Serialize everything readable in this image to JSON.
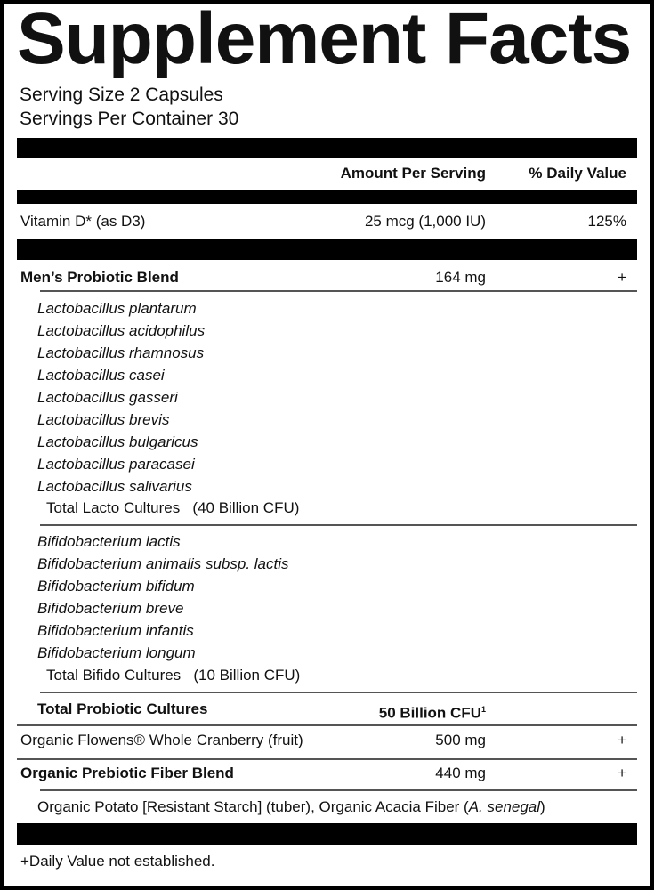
{
  "title": "Supplement Facts",
  "serving_size": "Serving Size 2 Capsules",
  "servings_per_container": "Servings Per Container 30",
  "header": {
    "amount": "Amount Per Serving",
    "daily_value": "% Daily Value"
  },
  "vitamin_d": {
    "name": "Vitamin D* (as D3)",
    "amount": "25 mcg (1,000 IU)",
    "dv": "125%"
  },
  "blend": {
    "name": "Men’s Probiotic Blend",
    "amount": "164 mg",
    "dv": "+"
  },
  "lacto": [
    "Lactobacillus plantarum",
    "Lactobacillus acidophilus",
    "Lactobacillus rhamnosus",
    "Lactobacillus casei",
    "Lactobacillus gasseri",
    "Lactobacillus brevis",
    "Lactobacillus bulgaricus",
    "Lactobacillus paracasei",
    "Lactobacillus salivarius"
  ],
  "lacto_total": "Total Lacto Cultures   (40 Billion CFU)",
  "bifido": [
    "Bifidobacterium lactis",
    "Bifidobacterium animalis subsp. lactis",
    "Bifidobacterium bifidum",
    "Bifidobacterium breve",
    "Bifidobacterium infantis",
    "Bifidobacterium longum"
  ],
  "bifido_total": "Total Bifido Cultures   (10 Billion CFU)",
  "total_probiotic": {
    "name": "Total Probiotic Cultures",
    "amount": "50 Billion CFU",
    "sup": "1"
  },
  "cranberry": {
    "name": "Organic Flowens® Whole Cranberry (fruit)",
    "amount": "500 mg",
    "dv": "+"
  },
  "prebiotic": {
    "name": "Organic Prebiotic Fiber Blend",
    "amount": "440 mg",
    "dv": "+"
  },
  "prebiotic_sub": {
    "text": "Organic Potato [Resistant Starch] (tuber), Organic Acacia Fiber (",
    "italic": "A. senegal",
    "close": ")"
  },
  "footnote": "+Daily Value not established."
}
